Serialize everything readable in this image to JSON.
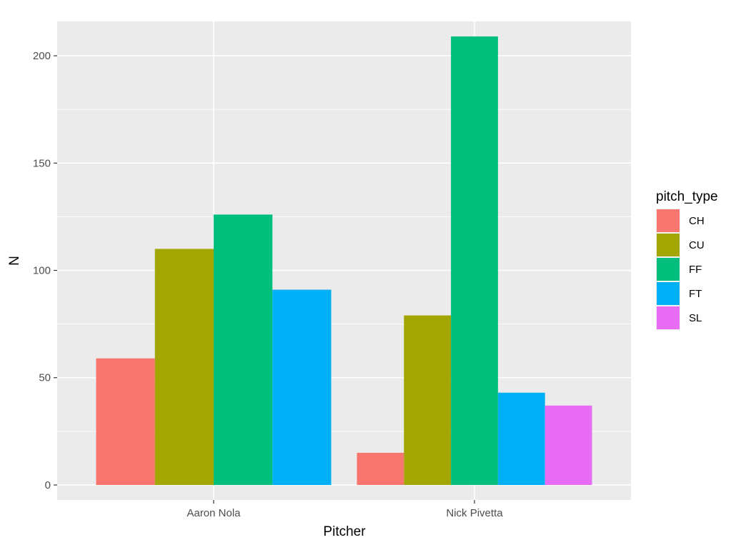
{
  "chart_data": {
    "type": "bar",
    "xlabel": "Pitcher",
    "ylabel": "N",
    "ylim": [
      -7,
      216
    ],
    "yticks": [
      0,
      50,
      100,
      150,
      200
    ],
    "categories": [
      "Aaron Nola",
      "Nick Pivetta"
    ],
    "legend": {
      "title": "pitch_type",
      "position": "right",
      "entries": [
        {
          "name": "CH",
          "color": "#F8766D"
        },
        {
          "name": "CU",
          "color": "#A3A500"
        },
        {
          "name": "FF",
          "color": "#00BF7D"
        },
        {
          "name": "FT",
          "color": "#00B0F6"
        },
        {
          "name": "SL",
          "color": "#E76BF3"
        }
      ]
    },
    "groups": [
      {
        "category": "Aaron Nola",
        "bars": [
          {
            "series": "CH",
            "value": 59
          },
          {
            "series": "CU",
            "value": 110
          },
          {
            "series": "FF",
            "value": 126
          },
          {
            "series": "FT",
            "value": 91
          }
        ]
      },
      {
        "category": "Nick Pivetta",
        "bars": [
          {
            "series": "CH",
            "value": 15
          },
          {
            "series": "CU",
            "value": 79
          },
          {
            "series": "FF",
            "value": 209
          },
          {
            "series": "FT",
            "value": 43
          },
          {
            "series": "SL",
            "value": 37
          }
        ]
      }
    ],
    "grid": true,
    "panel_background": "#EBEBEB"
  }
}
